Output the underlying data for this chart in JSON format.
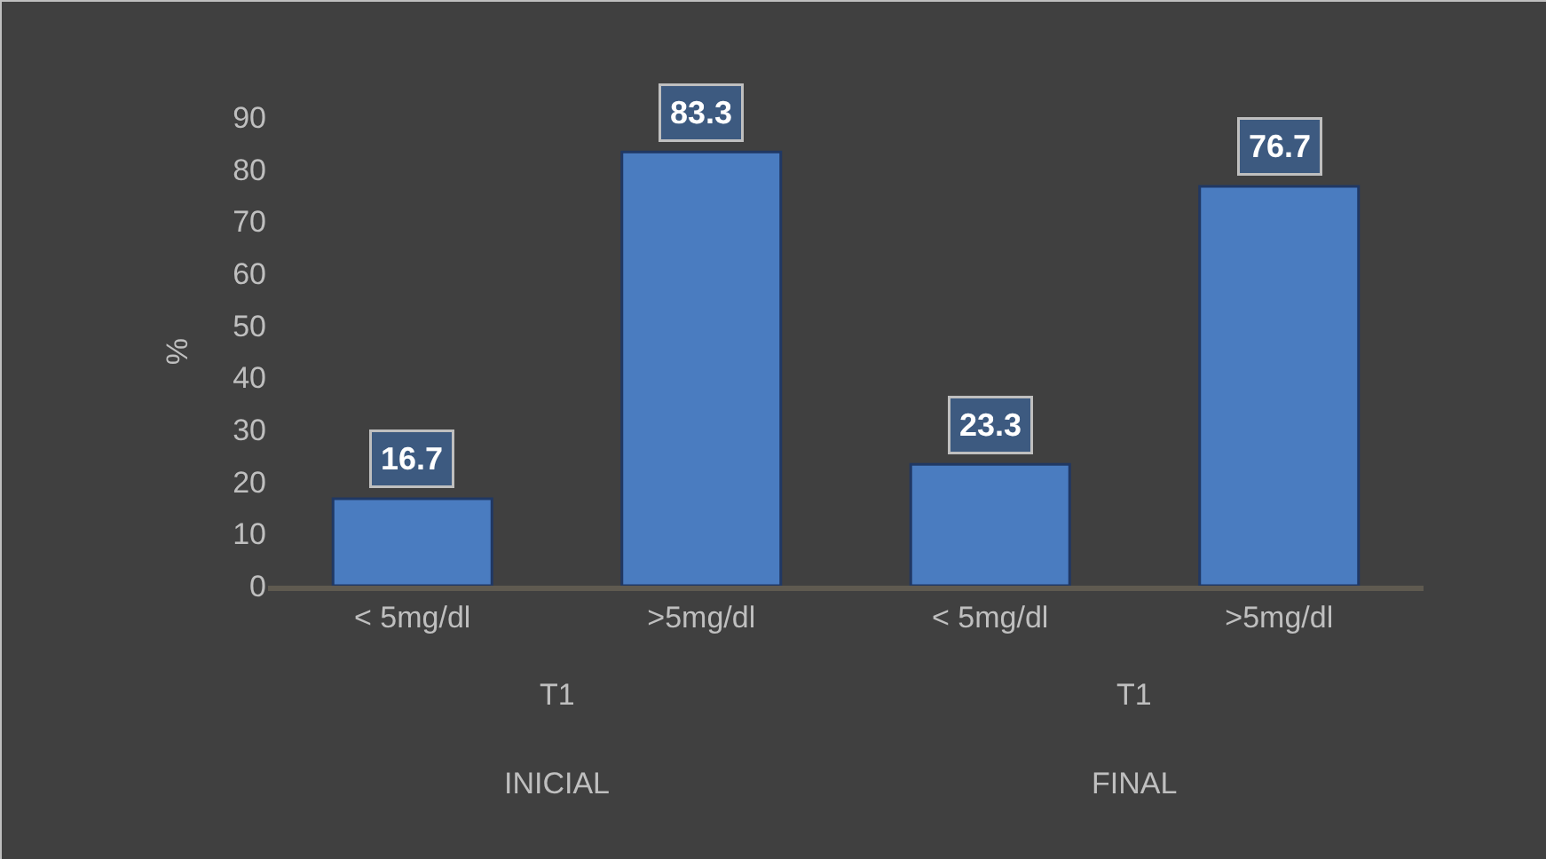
{
  "chart_data": {
    "type": "bar",
    "ylabel": "%",
    "categories": [
      "< 5mg/dl",
      ">5mg/dl",
      "< 5mg/dl",
      ">5mg/dl"
    ],
    "values": [
      16.7,
      83.3,
      23.3,
      76.7
    ],
    "color": "#4a7cc0",
    "data_labels": true,
    "ylim": [
      0,
      90
    ],
    "yticks": [
      0,
      10,
      20,
      30,
      40,
      50,
      60,
      70,
      80,
      90
    ],
    "grid": false,
    "annotations": [
      "T1",
      "T1",
      "INICIAL",
      "FINAL"
    ]
  }
}
